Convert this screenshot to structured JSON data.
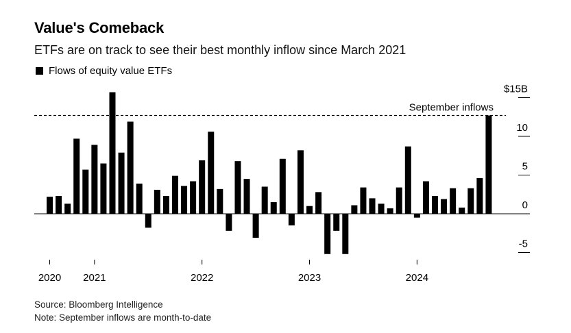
{
  "header": {
    "title": "Value's Comeback",
    "subtitle": "ETFs are on track to see their best monthly inflow since March 2021"
  },
  "footer": {
    "source": "Source: Bloomberg Intelligence",
    "note": "Note: September inflows are month-to-date"
  },
  "colors": {
    "bar": "#000000",
    "axis": "#000000"
  },
  "chart_data": {
    "type": "bar",
    "title": "Value's Comeback",
    "subtitle": "ETFs are on track to see their best monthly inflow since March 2021",
    "legend": [
      "Flows of equity value ETFs"
    ],
    "legend_position": "top-left",
    "ylabel": "",
    "xlabel": "",
    "unit": "$B",
    "ylim": [
      -5,
      15
    ],
    "yticks": [
      {
        "value": 15,
        "label": "$15B"
      },
      {
        "value": 10,
        "label": "10"
      },
      {
        "value": 5,
        "label": "5"
      },
      {
        "value": 0,
        "label": "0"
      },
      {
        "value": -5,
        "label": "-5"
      }
    ],
    "y_axis_position": "right",
    "grid": false,
    "xticks": [
      {
        "index": 0,
        "label": "2020"
      },
      {
        "index": 5,
        "label": "2021"
      },
      {
        "index": 17,
        "label": "2022"
      },
      {
        "index": 29,
        "label": "2023"
      },
      {
        "index": 41,
        "label": "2024"
      }
    ],
    "series": [
      {
        "name": "Flows of equity value ETFs",
        "values": [
          2.2,
          2.3,
          1.3,
          9.7,
          5.7,
          8.9,
          6.5,
          15.7,
          7.9,
          11.9,
          3.9,
          -1.8,
          3.1,
          2.3,
          4.9,
          3.6,
          4.2,
          6.9,
          10.6,
          3.2,
          -2.2,
          6.8,
          4.5,
          -3.1,
          3.5,
          1.5,
          7.1,
          -1.5,
          8.2,
          1.0,
          2.8,
          -5.2,
          -2.2,
          -5.2,
          1.1,
          3.4,
          2.0,
          1.3,
          0.7,
          3.4,
          8.7,
          -0.5,
          4.2,
          2.3,
          1.9,
          3.3,
          0.8,
          3.3,
          4.6,
          12.7
        ]
      }
    ],
    "annotations": [
      {
        "text": "September inflows",
        "type": "dashed-line",
        "y": 12.7
      }
    ]
  }
}
